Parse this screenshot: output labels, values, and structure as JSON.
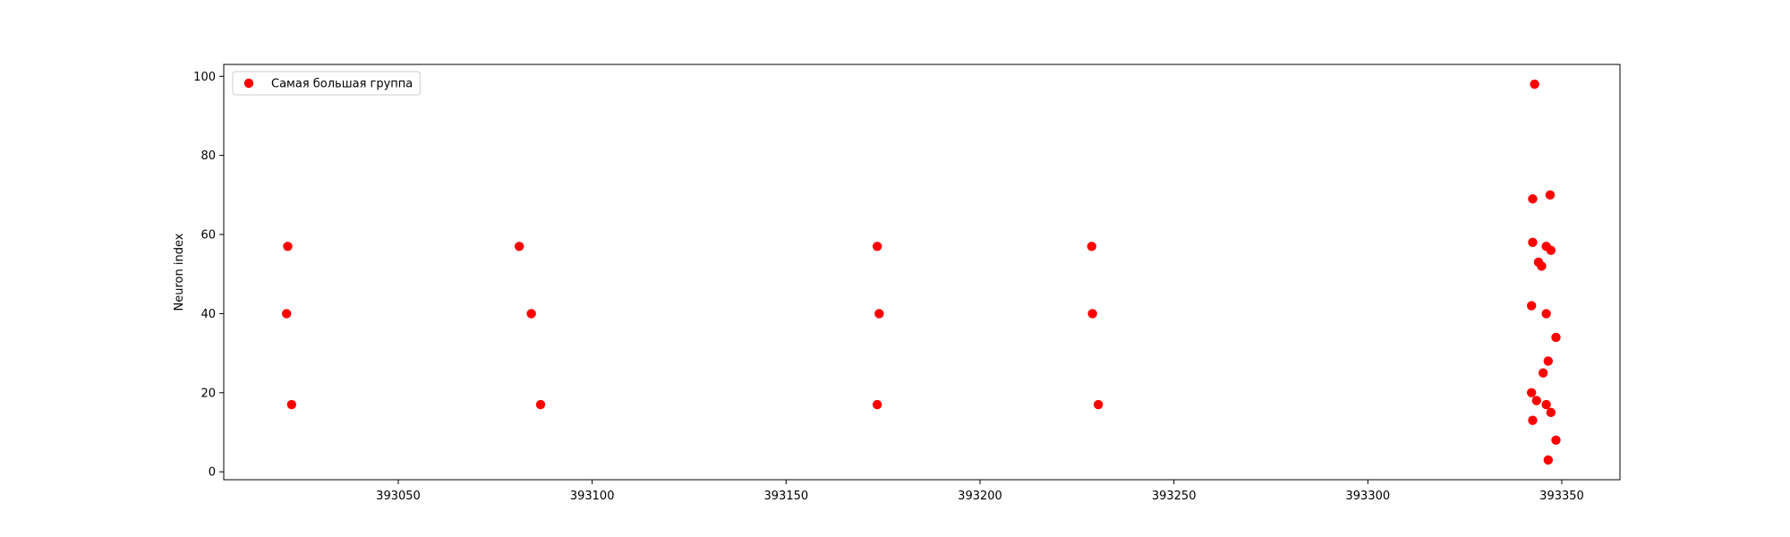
{
  "chart_data": {
    "type": "scatter",
    "title": "",
    "xlabel": "",
    "ylabel": "Neuron index",
    "xlim": [
      393005,
      393365
    ],
    "ylim": [
      -2,
      103
    ],
    "xticks": [
      393050,
      393100,
      393150,
      393200,
      393250,
      393300,
      393350
    ],
    "xtick_labels": [
      "393050",
      "393100",
      "393150",
      "393200",
      "393250",
      "393300",
      "393350"
    ],
    "yticks": [
      0,
      20,
      40,
      60,
      80,
      100
    ],
    "ytick_labels": [
      "0",
      "20",
      "40",
      "60",
      "80",
      "100"
    ],
    "grid": false,
    "legend": "top-left",
    "series": [
      {
        "name": "Самая большая группа",
        "color": "#ff0000",
        "points": [
          {
            "x": 393021.5,
            "y": 57
          },
          {
            "x": 393021.2,
            "y": 40
          },
          {
            "x": 393022.5,
            "y": 17
          },
          {
            "x": 393081.2,
            "y": 57
          },
          {
            "x": 393084.3,
            "y": 40
          },
          {
            "x": 393086.7,
            "y": 17
          },
          {
            "x": 393173.5,
            "y": 57
          },
          {
            "x": 393174.0,
            "y": 40
          },
          {
            "x": 393173.5,
            "y": 17
          },
          {
            "x": 393228.8,
            "y": 57
          },
          {
            "x": 393229.0,
            "y": 40
          },
          {
            "x": 393230.5,
            "y": 17
          },
          {
            "x": 393343.0,
            "y": 98
          },
          {
            "x": 393342.5,
            "y": 69
          },
          {
            "x": 393347.0,
            "y": 70
          },
          {
            "x": 393342.5,
            "y": 58
          },
          {
            "x": 393346.0,
            "y": 57
          },
          {
            "x": 393347.2,
            "y": 56
          },
          {
            "x": 393344.0,
            "y": 53
          },
          {
            "x": 393344.8,
            "y": 52
          },
          {
            "x": 393342.2,
            "y": 42
          },
          {
            "x": 393346.0,
            "y": 40
          },
          {
            "x": 393348.5,
            "y": 34
          },
          {
            "x": 393346.5,
            "y": 28
          },
          {
            "x": 393345.2,
            "y": 25
          },
          {
            "x": 393342.2,
            "y": 20
          },
          {
            "x": 393343.5,
            "y": 18
          },
          {
            "x": 393346.0,
            "y": 17
          },
          {
            "x": 393347.2,
            "y": 15
          },
          {
            "x": 393342.5,
            "y": 13
          },
          {
            "x": 393348.5,
            "y": 8
          },
          {
            "x": 393346.5,
            "y": 3
          }
        ]
      }
    ]
  }
}
